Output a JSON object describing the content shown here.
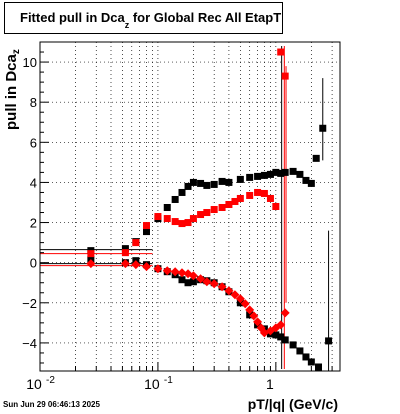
{
  "title": {
    "main": "Fitted pull in Dca",
    "sub": "z",
    "rest": " for Global Rec All EtapT"
  },
  "ylabel": {
    "main": "pull in Dca",
    "sub": "z"
  },
  "xlabel": "pT/|q| (GeV/c)",
  "footer": {
    "datestamp": "Sun Jun 29 06:46:13 2025"
  },
  "chart_data": {
    "type": "scatter",
    "title": "Fitted pull in Dca_z for Global Rec All EtapT",
    "xlabel": "pT/|q| (GeV/c)",
    "ylabel": "pull in Dca_z",
    "xscale": "log",
    "xlim": [
      0.01,
      3.5
    ],
    "ylim": [
      -5.4,
      11.0
    ],
    "grid": true,
    "x_ticks": [
      {
        "v": 0.01,
        "l": "10"
      },
      {
        "v": 0.1,
        "l": "10"
      },
      {
        "v": 1,
        "l": "1"
      }
    ],
    "x_tick_exponents": [
      "-2",
      "-1",
      ""
    ],
    "y_ticks": [
      -4,
      -2,
      0,
      2,
      4,
      6,
      8,
      10
    ],
    "series": [
      {
        "color": "#000000",
        "marker": "square",
        "x": [
          0.027,
          0.053,
          0.065,
          0.08,
          0.1,
          0.12,
          0.14,
          0.16,
          0.18,
          0.2,
          0.23,
          0.26,
          0.3,
          0.35,
          0.4,
          0.5,
          0.6,
          0.7,
          0.8,
          0.9,
          1.0,
          1.1,
          1.2,
          1.4,
          1.6,
          1.8,
          2.0,
          2.2,
          2.5
        ],
        "y": [
          0.6,
          0.7,
          1.05,
          1.55,
          2.2,
          2.75,
          3.15,
          3.5,
          3.8,
          4.0,
          3.95,
          3.85,
          3.9,
          4.05,
          4.0,
          4.15,
          4.25,
          4.3,
          4.35,
          4.4,
          4.5,
          4.45,
          4.5,
          4.55,
          4.4,
          4.1,
          3.95,
          5.2,
          6.7
        ]
      },
      {
        "color": "#000000",
        "marker": "square",
        "x": [
          0.027,
          0.053,
          0.065,
          0.08,
          0.1,
          0.12,
          0.14,
          0.16,
          0.18,
          0.2,
          0.23,
          0.26,
          0.3,
          0.35,
          0.4,
          0.5,
          0.6,
          0.7,
          0.8,
          0.9,
          1.0,
          1.1,
          1.2,
          1.4,
          1.6,
          1.8,
          2.0,
          2.3,
          2.8
        ],
        "y": [
          0.15,
          0.0,
          0.1,
          -0.1,
          -0.3,
          -0.45,
          -0.6,
          -0.85,
          -1.0,
          -0.95,
          -0.85,
          -0.9,
          -1.0,
          -1.2,
          -1.45,
          -2.0,
          -2.6,
          -3.1,
          -3.3,
          -3.55,
          -3.6,
          -3.7,
          -3.85,
          -4.1,
          -4.4,
          -4.7,
          -4.95,
          -5.2,
          -3.9
        ]
      },
      {
        "color": "#ff0000",
        "marker": "square",
        "x": [
          0.027,
          0.053,
          0.065,
          0.08,
          0.1,
          0.12,
          0.14,
          0.16,
          0.18,
          0.2,
          0.23,
          0.26,
          0.3,
          0.35,
          0.4,
          0.45,
          0.5,
          0.6,
          0.7,
          0.8,
          0.9,
          1.0,
          1.1,
          1.2
        ],
        "y": [
          0.45,
          0.5,
          1.0,
          1.85,
          2.3,
          2.2,
          2.05,
          1.95,
          2.0,
          2.2,
          2.4,
          2.5,
          2.65,
          2.75,
          2.9,
          3.05,
          3.2,
          3.35,
          3.5,
          3.45,
          3.2,
          2.8,
          10.5,
          9.3
        ]
      },
      {
        "color": "#ff0000",
        "marker": "diamond",
        "x": [
          0.027,
          0.053,
          0.065,
          0.08,
          0.1,
          0.12,
          0.14,
          0.16,
          0.18,
          0.2,
          0.23,
          0.26,
          0.3,
          0.35,
          0.4,
          0.45,
          0.5,
          0.55,
          0.6,
          0.65,
          0.7,
          0.75,
          0.8,
          0.9,
          1.0,
          1.1,
          1.2
        ],
        "y": [
          -0.05,
          -0.05,
          -0.1,
          -0.2,
          -0.3,
          -0.4,
          -0.45,
          -0.5,
          -0.55,
          -0.65,
          -0.8,
          -0.95,
          -1.05,
          -1.2,
          -1.4,
          -1.6,
          -1.8,
          -2.05,
          -2.35,
          -2.65,
          -2.95,
          -3.25,
          -3.5,
          -3.4,
          -3.25,
          -3.1,
          -2.5
        ]
      }
    ],
    "band": [
      -0.05,
      0.65
    ]
  }
}
